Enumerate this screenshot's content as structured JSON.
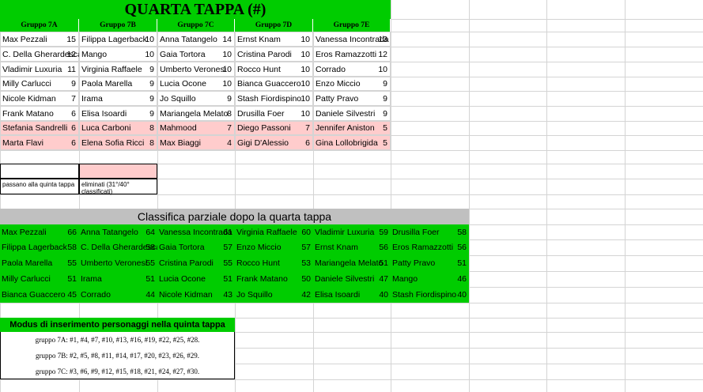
{
  "tappa": {
    "title": "QUARTA TAPPA (#)",
    "groups": [
      "Gruppo 7A",
      "Gruppo 7B",
      "Gruppo 7C",
      "Gruppo 7D",
      "Gruppo 7E"
    ],
    "rows": [
      [
        {
          "name": "Max Pezzali",
          "score": 15
        },
        {
          "name": "Filippa Lagerback",
          "score": 10
        },
        {
          "name": "Anna Tatangelo",
          "score": 14
        },
        {
          "name": "Ernst Knam",
          "score": 10
        },
        {
          "name": "Vanessa Incontrada",
          "score": 13
        }
      ],
      [
        {
          "name": "C. Della Gherardesca",
          "score": 12
        },
        {
          "name": "Mango",
          "score": 10
        },
        {
          "name": "Gaia Tortora",
          "score": 10
        },
        {
          "name": "Cristina Parodi",
          "score": 10
        },
        {
          "name": "Eros Ramazzotti",
          "score": 12
        }
      ],
      [
        {
          "name": "Vladimir Luxuria",
          "score": 11
        },
        {
          "name": "Virginia Raffaele",
          "score": 9
        },
        {
          "name": "Umberto Veronesi",
          "score": 10
        },
        {
          "name": "Rocco Hunt",
          "score": 10
        },
        {
          "name": "Corrado",
          "score": 10
        }
      ],
      [
        {
          "name": "Milly Carlucci",
          "score": 9
        },
        {
          "name": "Paola Marella",
          "score": 9
        },
        {
          "name": "Lucia Ocone",
          "score": 10
        },
        {
          "name": "Bianca Guaccero",
          "score": 10
        },
        {
          "name": "Enzo Miccio",
          "score": 9
        }
      ],
      [
        {
          "name": "Nicole Kidman",
          "score": 7
        },
        {
          "name": "Irama",
          "score": 9
        },
        {
          "name": "Jo Squillo",
          "score": 9
        },
        {
          "name": "Stash Fiordispino",
          "score": 10
        },
        {
          "name": "Patty Pravo",
          "score": 9
        }
      ],
      [
        {
          "name": "Frank Matano",
          "score": 6
        },
        {
          "name": "Elisa Isoardi",
          "score": 9
        },
        {
          "name": "Mariangela Melato",
          "score": 8
        },
        {
          "name": "Drusilla Foer",
          "score": 10
        },
        {
          "name": "Daniele Silvestri",
          "score": 9
        }
      ],
      [
        {
          "name": "Stefania Sandrelli",
          "score": 6
        },
        {
          "name": "Luca Carboni",
          "score": 8
        },
        {
          "name": "Mahmood",
          "score": 7
        },
        {
          "name": "Diego Passoni",
          "score": 7
        },
        {
          "name": "Jennifer Aniston",
          "score": 5
        }
      ],
      [
        {
          "name": "Marta Flavi",
          "score": 6
        },
        {
          "name": "Elena Sofia Ricci",
          "score": 8
        },
        {
          "name": "Max Biaggi",
          "score": 4
        },
        {
          "name": "Gigi D'Alessio",
          "score": 6
        },
        {
          "name": "Gina Lollobrigida",
          "score": 5
        }
      ]
    ]
  },
  "legend": {
    "passano": "passano alla quinta tappa",
    "eliminati": "eliminati (31°/40° classificati)"
  },
  "classifica": {
    "title": "Classifica parziale dopo la quarta tappa",
    "rows": [
      [
        {
          "name": "Max Pezzali",
          "score": 66
        },
        {
          "name": "Anna Tatangelo",
          "score": 64
        },
        {
          "name": "Vanessa Incontrada",
          "score": 61
        },
        {
          "name": "Virginia Raffaele",
          "score": 60
        },
        {
          "name": "Vladimir Luxuria",
          "score": 59
        },
        {
          "name": "Drusilla Foer",
          "score": 58
        }
      ],
      [
        {
          "name": "Filippa Lagerback",
          "score": 58
        },
        {
          "name": "C. Della Gherardesca",
          "score": 58
        },
        {
          "name": "Gaia Tortora",
          "score": 57
        },
        {
          "name": "Enzo Miccio",
          "score": 57
        },
        {
          "name": "Ernst Knam",
          "score": 56
        },
        {
          "name": "Eros Ramazzotti",
          "score": 56
        }
      ],
      [
        {
          "name": "Paola Marella",
          "score": 55
        },
        {
          "name": "Umberto Veronesi",
          "score": 55
        },
        {
          "name": "Cristina Parodi",
          "score": 55
        },
        {
          "name": "Rocco Hunt",
          "score": 53
        },
        {
          "name": "Mariangela Melato",
          "score": 51
        },
        {
          "name": "Patty Pravo",
          "score": 51
        }
      ],
      [
        {
          "name": "Milly Carlucci",
          "score": 51
        },
        {
          "name": "Irama",
          "score": 51
        },
        {
          "name": "Lucia Ocone",
          "score": 51
        },
        {
          "name": "Frank Matano",
          "score": 50
        },
        {
          "name": "Daniele Silvestri",
          "score": 47
        },
        {
          "name": "Mango",
          "score": 46
        }
      ],
      [
        {
          "name": "Bianca Guaccero",
          "score": 45
        },
        {
          "name": "Corrado",
          "score": 44
        },
        {
          "name": "Nicole Kidman",
          "score": 43
        },
        {
          "name": "Jo Squillo",
          "score": 42
        },
        {
          "name": "Elisa Isoardi",
          "score": 40
        },
        {
          "name": "Stash Fiordispino",
          "score": 40
        }
      ]
    ]
  },
  "modus": {
    "title": "Modus di inserimento personaggi nella quinta tappa",
    "lines": [
      "gruppo 7A: #1, #4, #7, #10, #13, #16, #19, #22, #25, #28.",
      "gruppo 7B: #2, #5, #8, #11, #14, #17, #20, #23, #26, #29.",
      "gruppo 7C: #3, #6, #9, #12, #15, #18, #21, #24, #27, #30."
    ]
  }
}
